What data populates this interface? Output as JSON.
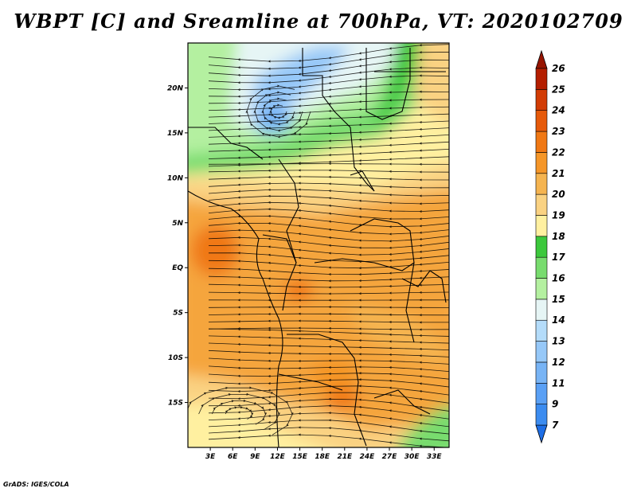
{
  "title": "WBPT [C] and Sreamline at 700hPa, VT: 2020102709",
  "credit": "GrADS: IGES/COLA",
  "lat_labels": [
    "20N",
    "15N",
    "10N",
    "5N",
    "EQ",
    "5S",
    "10S",
    "15S"
  ],
  "lat_values": [
    20,
    15,
    10,
    5,
    0,
    -5,
    -10,
    -15
  ],
  "lon_labels": [
    "3E",
    "6E",
    "9E",
    "12E",
    "15E",
    "18E",
    "21E",
    "24E",
    "27E",
    "30E",
    "33E"
  ],
  "lon_values": [
    3,
    6,
    9,
    12,
    15,
    18,
    21,
    24,
    27,
    30,
    33
  ],
  "lon_range": [
    0,
    35
  ],
  "lat_range": [
    -20,
    25
  ],
  "colorbar": {
    "labels": [
      "7",
      "9",
      "11",
      "12",
      "13",
      "14",
      "15",
      "16",
      "17",
      "18",
      "19",
      "20",
      "21",
      "22",
      "23",
      "24",
      "25",
      "26"
    ],
    "colors": [
      "#1e6ee6",
      "#3c8cf0",
      "#5aa0f5",
      "#78b4f5",
      "#96c8f8",
      "#b4dcfa",
      "#e6f5f5",
      "#b4f0a0",
      "#78dc6e",
      "#3cc83c",
      "#fff0a0",
      "#fad282",
      "#f5b450",
      "#f59628",
      "#f07814",
      "#e65a0a",
      "#d23c05",
      "#b41e00",
      "#961400"
    ]
  }
}
